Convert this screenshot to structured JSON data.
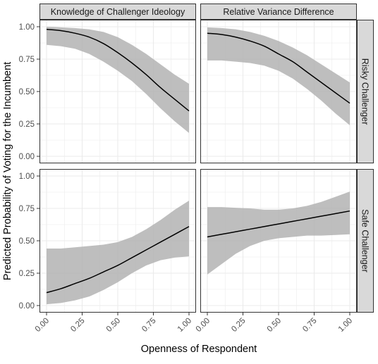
{
  "chart_data": {
    "type": "line",
    "xlabel": "Openness of Respondent",
    "ylabel": "Predicted Probability of Voting for the Incumbent",
    "xlim": [
      0,
      1
    ],
    "ylim": [
      0,
      1
    ],
    "x_ticks": [
      "0.00",
      "0.25",
      "0.50",
      "0.75",
      "1.00"
    ],
    "y_ticks": [
      "0.00",
      "0.25",
      "0.50",
      "0.75",
      "1.00"
    ],
    "col_facets": [
      "Knowledge of Challenger Ideology",
      "Relative Variance Difference"
    ],
    "row_facets": [
      "Risky Challenger",
      "Safe Challenger"
    ],
    "grid": true,
    "colors": {
      "panel_bg": "#ffffff",
      "grid": "#ebebeb",
      "band": "#b3b3b3",
      "line": "#000000",
      "strip_bg": "#d9d9d9",
      "strip_border": "#333333"
    },
    "panels": [
      {
        "col": 0,
        "row": 0,
        "x": [
          0,
          0.1,
          0.2,
          0.3,
          0.4,
          0.5,
          0.6,
          0.7,
          0.8,
          0.9,
          1.0
        ],
        "y": [
          0.98,
          0.97,
          0.95,
          0.92,
          0.87,
          0.8,
          0.72,
          0.63,
          0.53,
          0.44,
          0.35
        ],
        "lower": [
          0.86,
          0.85,
          0.83,
          0.79,
          0.73,
          0.66,
          0.58,
          0.48,
          0.37,
          0.27,
          0.18
        ],
        "upper": [
          1.0,
          0.995,
          0.99,
          0.98,
          0.96,
          0.92,
          0.86,
          0.79,
          0.71,
          0.63,
          0.56
        ]
      },
      {
        "col": 1,
        "row": 0,
        "x": [
          0,
          0.1,
          0.2,
          0.3,
          0.4,
          0.5,
          0.6,
          0.7,
          0.8,
          0.9,
          1.0
        ],
        "y": [
          0.95,
          0.94,
          0.92,
          0.89,
          0.85,
          0.79,
          0.73,
          0.65,
          0.57,
          0.49,
          0.41
        ],
        "lower": [
          0.74,
          0.74,
          0.73,
          0.72,
          0.7,
          0.66,
          0.6,
          0.52,
          0.43,
          0.33,
          0.24
        ],
        "upper": [
          0.995,
          0.99,
          0.98,
          0.96,
          0.93,
          0.89,
          0.84,
          0.78,
          0.71,
          0.64,
          0.57
        ]
      },
      {
        "col": 0,
        "row": 1,
        "x": [
          0,
          0.1,
          0.2,
          0.3,
          0.4,
          0.5,
          0.6,
          0.7,
          0.8,
          0.9,
          1.0
        ],
        "y": [
          0.1,
          0.13,
          0.17,
          0.21,
          0.26,
          0.31,
          0.37,
          0.43,
          0.49,
          0.55,
          0.61
        ],
        "lower": [
          0.01,
          0.02,
          0.04,
          0.07,
          0.12,
          0.18,
          0.25,
          0.31,
          0.35,
          0.37,
          0.38
        ],
        "upper": [
          0.44,
          0.44,
          0.45,
          0.46,
          0.47,
          0.49,
          0.53,
          0.59,
          0.66,
          0.74,
          0.81
        ]
      },
      {
        "col": 1,
        "row": 1,
        "x": [
          0,
          0.1,
          0.2,
          0.3,
          0.4,
          0.5,
          0.6,
          0.7,
          0.8,
          0.9,
          1.0
        ],
        "y": [
          0.53,
          0.55,
          0.57,
          0.59,
          0.61,
          0.63,
          0.65,
          0.67,
          0.69,
          0.71,
          0.73
        ],
        "lower": [
          0.24,
          0.32,
          0.4,
          0.46,
          0.5,
          0.52,
          0.53,
          0.54,
          0.54,
          0.545,
          0.55
        ],
        "upper": [
          0.76,
          0.76,
          0.755,
          0.75,
          0.74,
          0.74,
          0.75,
          0.77,
          0.8,
          0.84,
          0.88
        ]
      }
    ]
  }
}
